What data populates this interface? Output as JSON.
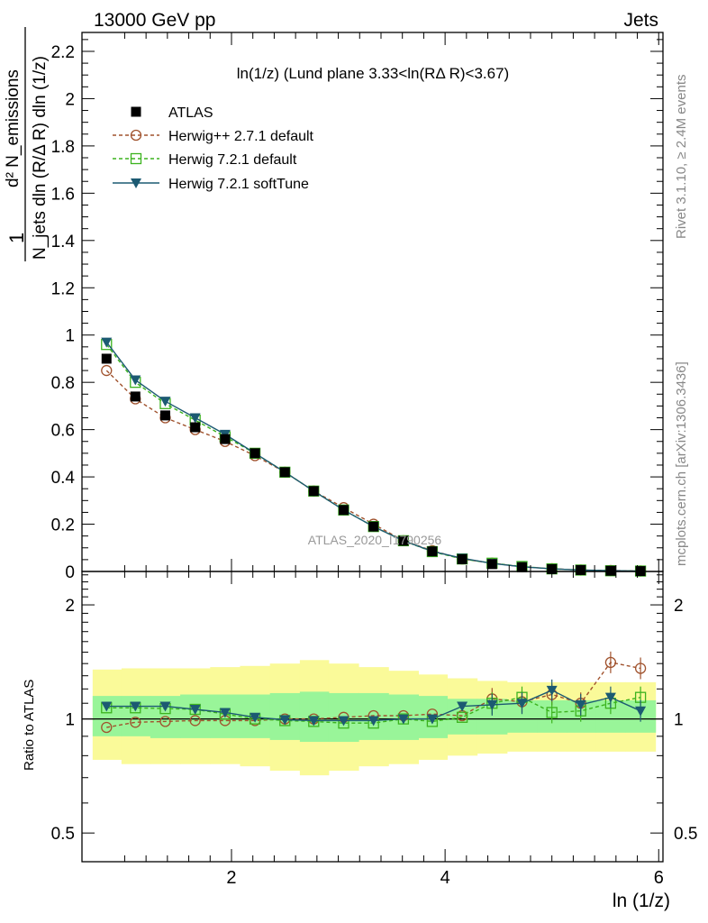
{
  "header": {
    "left": "13000 GeV pp",
    "right": "Jets"
  },
  "side_labels": {
    "rivet": "Rivet 3.1.10, ≥ 2.4M events",
    "mcplots": "mcplots.cern.ch [arXiv:1306.3436]"
  },
  "watermark": "ATLAS_2020_I1790256",
  "plot_title": "ln(1/z) (Lund plane 3.33<ln(RΔ R)<3.67)",
  "ylabel_main": {
    "numerator": "d² N_emissions",
    "denominator": "N_jets dln (R/Δ R) dln (1/z)",
    "one": "1"
  },
  "ylabel_ratio": "Ratio to ATLAS",
  "xlabel": "ln (1/z)",
  "colors": {
    "atlas": "#000000",
    "herwigpp": "#a0522d",
    "herwig721": "#3cb31e",
    "softtune": "#1c5a72",
    "band_inner": "#99f599",
    "band_outer": "#fafa99"
  },
  "chart_data": [
    {
      "type": "line",
      "panel": "main",
      "xlim": [
        0.6,
        6.04
      ],
      "ylim": [
        0,
        2.28
      ],
      "x_ticks": [
        "2",
        "4",
        "6"
      ],
      "y_ticks": [
        "0",
        "0.2",
        "0.4",
        "0.6",
        "0.8",
        "1",
        "1.2",
        "1.4",
        "1.6",
        "1.8",
        "2",
        "2.2"
      ],
      "x": [
        0.83,
        1.1,
        1.38,
        1.66,
        1.94,
        2.22,
        2.5,
        2.77,
        3.05,
        3.33,
        3.61,
        3.88,
        4.16,
        4.44,
        4.72,
        5.0,
        5.27,
        5.55,
        5.83
      ],
      "series": [
        {
          "name": "ATLAS",
          "marker": "square-filled",
          "values": [
            0.9,
            0.74,
            0.66,
            0.61,
            0.56,
            0.5,
            0.42,
            0.34,
            0.26,
            0.19,
            0.13,
            0.085,
            0.052,
            0.031,
            0.018,
            0.01,
            0.006,
            0.003,
            0.0016
          ]
        },
        {
          "name": "Herwig++ 2.7.1 default",
          "marker": "circle-open",
          "dash": true,
          "values": [
            0.85,
            0.73,
            0.65,
            0.6,
            0.55,
            0.49,
            0.42,
            0.34,
            0.27,
            0.2,
            0.13,
            0.088,
            0.053,
            0.035,
            0.02,
            0.012,
            0.006,
            0.004,
            0.0021
          ]
        },
        {
          "name": "Herwig 7.2.1 default",
          "marker": "square-open",
          "dash": true,
          "values": [
            0.96,
            0.8,
            0.71,
            0.64,
            0.57,
            0.5,
            0.42,
            0.34,
            0.26,
            0.19,
            0.13,
            0.084,
            0.053,
            0.035,
            0.021,
            0.011,
            0.006,
            0.003,
            0.0018
          ]
        },
        {
          "name": "Herwig 7.2.1 softTune",
          "marker": "triangle-down-filled",
          "values": [
            0.97,
            0.81,
            0.72,
            0.65,
            0.58,
            0.5,
            0.42,
            0.34,
            0.26,
            0.19,
            0.13,
            0.085,
            0.056,
            0.034,
            0.02,
            0.011,
            0.006,
            0.0033,
            0.0017
          ]
        }
      ]
    },
    {
      "type": "line",
      "panel": "ratio",
      "xlim": [
        0.6,
        6.04
      ],
      "ylim": [
        0.42,
        2.45
      ],
      "log_y": true,
      "x_ticks": [
        "2",
        "4",
        "6"
      ],
      "y_ticks": [
        "0.5",
        "1",
        "2"
      ],
      "ylabel": "Ratio to ATLAS",
      "x": [
        0.83,
        1.1,
        1.38,
        1.66,
        1.94,
        2.22,
        2.5,
        2.77,
        3.05,
        3.33,
        3.61,
        3.88,
        4.16,
        4.44,
        4.72,
        5.0,
        5.27,
        5.55,
        5.83
      ],
      "bands": {
        "edges": [
          0.7,
          0.97,
          1.24,
          1.52,
          1.8,
          2.08,
          2.36,
          2.64,
          2.91,
          3.19,
          3.47,
          3.75,
          4.02,
          4.3,
          4.58,
          4.86,
          5.14,
          5.41,
          5.69,
          5.97
        ],
        "outer_low": [
          0.78,
          0.76,
          0.76,
          0.76,
          0.76,
          0.75,
          0.73,
          0.71,
          0.73,
          0.75,
          0.76,
          0.78,
          0.8,
          0.81,
          0.82,
          0.82,
          0.82,
          0.82,
          0.82
        ],
        "outer_high": [
          1.35,
          1.36,
          1.36,
          1.36,
          1.37,
          1.38,
          1.4,
          1.43,
          1.4,
          1.37,
          1.34,
          1.31,
          1.28,
          1.26,
          1.25,
          1.25,
          1.25,
          1.25,
          1.25
        ],
        "inner_low": [
          0.9,
          0.9,
          0.89,
          0.89,
          0.89,
          0.89,
          0.88,
          0.87,
          0.87,
          0.88,
          0.88,
          0.89,
          0.91,
          0.91,
          0.92,
          0.92,
          0.92,
          0.92,
          0.92
        ],
        "inner_high": [
          1.15,
          1.15,
          1.15,
          1.16,
          1.16,
          1.16,
          1.17,
          1.18,
          1.17,
          1.17,
          1.16,
          1.15,
          1.13,
          1.13,
          1.12,
          1.12,
          1.12,
          1.12,
          1.12
        ]
      },
      "series": [
        {
          "name": "Herwig++ 2.7.1 default",
          "marker": "circle-open",
          "dash": true,
          "values": [
            0.95,
            0.98,
            0.985,
            0.99,
            0.99,
            0.99,
            1.0,
            1.0,
            1.01,
            1.02,
            1.02,
            1.03,
            1.02,
            1.13,
            1.11,
            1.16,
            1.1,
            1.41,
            1.36
          ]
        },
        {
          "name": "Herwig 7.2.1 default",
          "marker": "square-open",
          "dash": true,
          "values": [
            1.07,
            1.07,
            1.065,
            1.06,
            1.03,
            1.0,
            0.99,
            0.985,
            0.975,
            0.975,
            1.0,
            0.985,
            1.01,
            1.1,
            1.14,
            1.04,
            1.05,
            1.1,
            1.14
          ]
        },
        {
          "name": "Herwig 7.2.1 softTune",
          "marker": "triangle-down-filled",
          "values": [
            1.08,
            1.08,
            1.08,
            1.06,
            1.04,
            1.01,
            0.995,
            0.99,
            0.99,
            0.99,
            1.0,
            1.0,
            1.08,
            1.09,
            1.1,
            1.19,
            1.09,
            1.14,
            1.05
          ]
        }
      ]
    }
  ]
}
